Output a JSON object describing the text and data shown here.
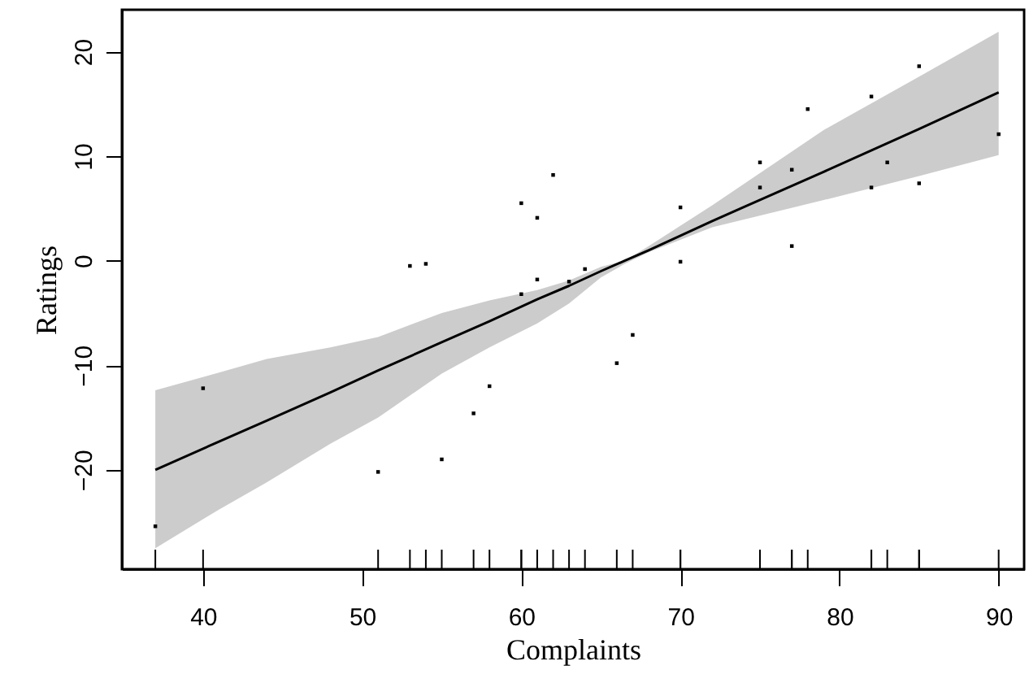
{
  "chart_data": {
    "type": "scatter",
    "xlabel": "Complaints",
    "ylabel": "Ratings",
    "xlim": [
      34.9,
      91.6
    ],
    "ylim": [
      -29.5,
      24
    ],
    "xticks": [
      40,
      50,
      60,
      70,
      80,
      90
    ],
    "yticks": [
      -20,
      -10,
      0,
      10,
      20
    ],
    "grid": false,
    "series": [
      {
        "type": "line",
        "marker": "none",
        "color": "#000000",
        "x": [
          37,
          41,
          44,
          48,
          51,
          55,
          58,
          61,
          63,
          65,
          66.5,
          68,
          72,
          79,
          85,
          90
        ],
        "values": [
          -20.0,
          -17.3,
          -15.3,
          -12.6,
          -10.5,
          -7.8,
          -5.8,
          -3.7,
          -2.4,
          -1.0,
          0.0,
          1.0,
          3.8,
          8.5,
          12.6,
          16.1
        ],
        "lower": [
          -27.5,
          -23.8,
          -21.2,
          -17.5,
          -15.0,
          -10.8,
          -8.3,
          -6.0,
          -4.1,
          -1.6,
          -0.3,
          0.8,
          3.2,
          5.8,
          8.1,
          10.1
        ],
        "upper": [
          -12.4,
          -10.7,
          -9.4,
          -8.3,
          -7.3,
          -5.0,
          -3.8,
          -2.8,
          -1.9,
          -0.6,
          0.0,
          1.4,
          5.3,
          12.5,
          17.6,
          21.9
        ]
      },
      {
        "marker": "square",
        "color": "#000000",
        "x": [
          37,
          40,
          51,
          53,
          54,
          55,
          57,
          58,
          60,
          60,
          61,
          61,
          62,
          63,
          64,
          66,
          67,
          70,
          70,
          75,
          75,
          77,
          77,
          78,
          82,
          82,
          83,
          85,
          85,
          90
        ],
        "values": [
          -25.4,
          -12.2,
          -20.2,
          -0.5,
          -0.3,
          -19,
          -14.6,
          -12,
          5.5,
          -3.2,
          4.1,
          -1.8,
          8.2,
          -2.0,
          -0.8,
          -9.8,
          -7.1,
          5.1,
          -0.1,
          9.4,
          7.0,
          8.7,
          1.4,
          14.5,
          15.7,
          7.0,
          9.4,
          18.6,
          7.4,
          12.1
        ]
      }
    ]
  }
}
